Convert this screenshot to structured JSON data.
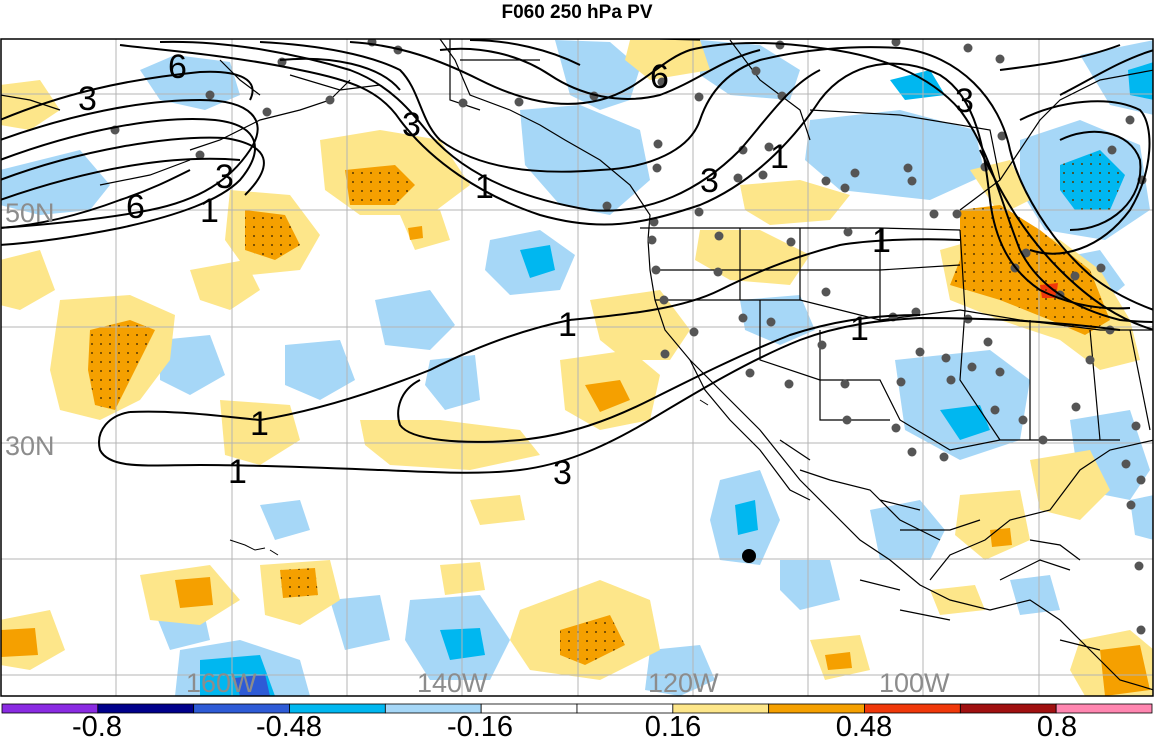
{
  "title": "F060 250 hPa PV",
  "lat_labels": [
    "50N",
    "30N"
  ],
  "lon_labels": [
    "160W",
    "140W",
    "120W",
    "100W"
  ],
  "contour_labels": [
    "6",
    "3",
    "3",
    "6",
    "1",
    "3",
    "3",
    "6",
    "3",
    "1",
    "1",
    "1",
    "1",
    "1",
    "1",
    "1",
    "3"
  ],
  "colorbar": {
    "colors": [
      "#8a2be2",
      "#00008b",
      "#2e5bd6",
      "#00b7f0",
      "#a6d7f7",
      "#ffffff",
      "#ffffff",
      "#fde68a",
      "#f5a000",
      "#f0380a",
      "#a01010",
      "#ff86b0"
    ],
    "labels": [
      "-0.8",
      "-0.48",
      "-0.16",
      "0.16",
      "0.48",
      "0.8"
    ]
  }
}
